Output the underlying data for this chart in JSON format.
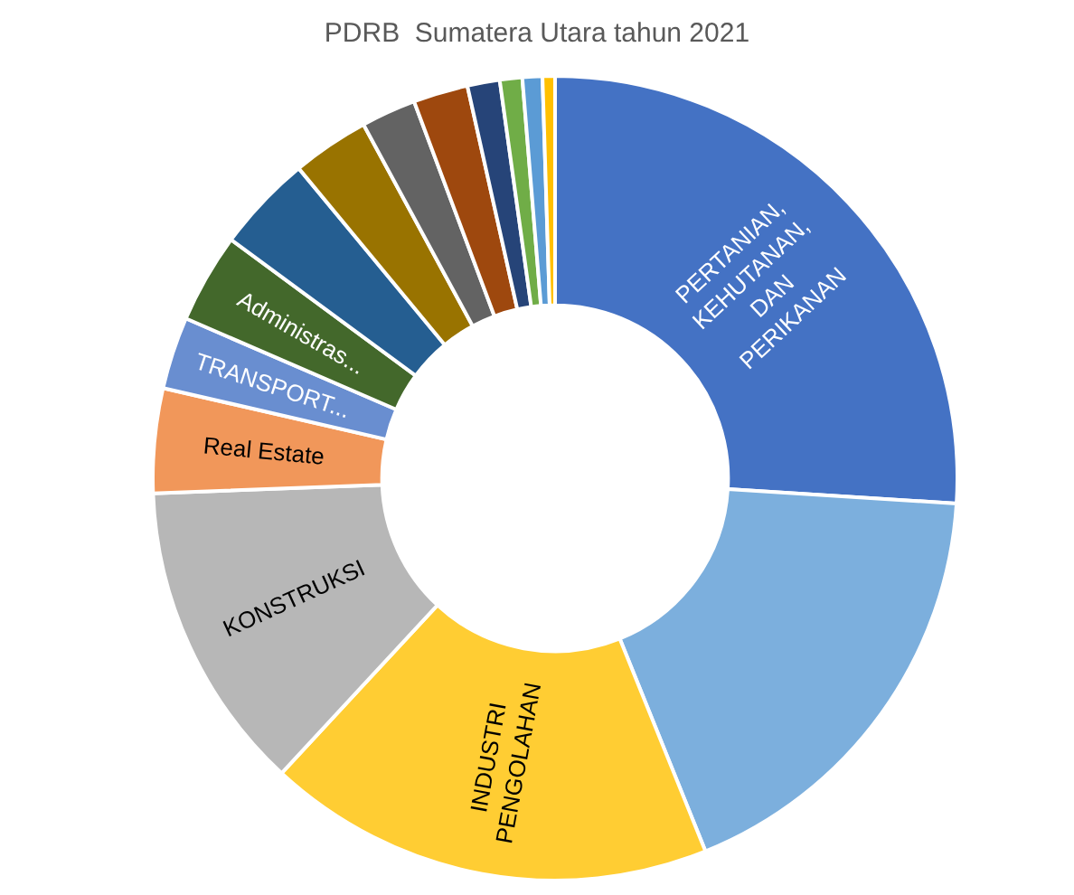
{
  "chart_data": {
    "type": "donut",
    "title": "PDRB  Sumatera Utara tahun 2021",
    "categories": [
      "PERTANIAN,\nKEHUTANAN,\nDAN\nPERIKANAN",
      null,
      "INDUSTRI\nPENGOLAHAN",
      "KONSTRUKSI",
      "Real Estate",
      "TRANSPORT...",
      "Administras...",
      null,
      null,
      null,
      null,
      null,
      null,
      null,
      null
    ],
    "values": [
      26.0,
      17.9,
      18.0,
      12.5,
      4.2,
      2.9,
      3.6,
      3.9,
      3.1,
      2.2,
      2.2,
      1.3,
      0.9,
      0.8,
      0.5
    ],
    "colors": [
      "#4472c4",
      "#7cafdd",
      "#ffcd33",
      "#b7b7b7",
      "#f1975a",
      "#698ed0",
      "#43682b",
      "#255e91",
      "#997300",
      "#636363",
      "#9e480e",
      "#264478",
      "#70ad47",
      "#5b9bd5",
      "#ffc000"
    ],
    "legend": false
  }
}
